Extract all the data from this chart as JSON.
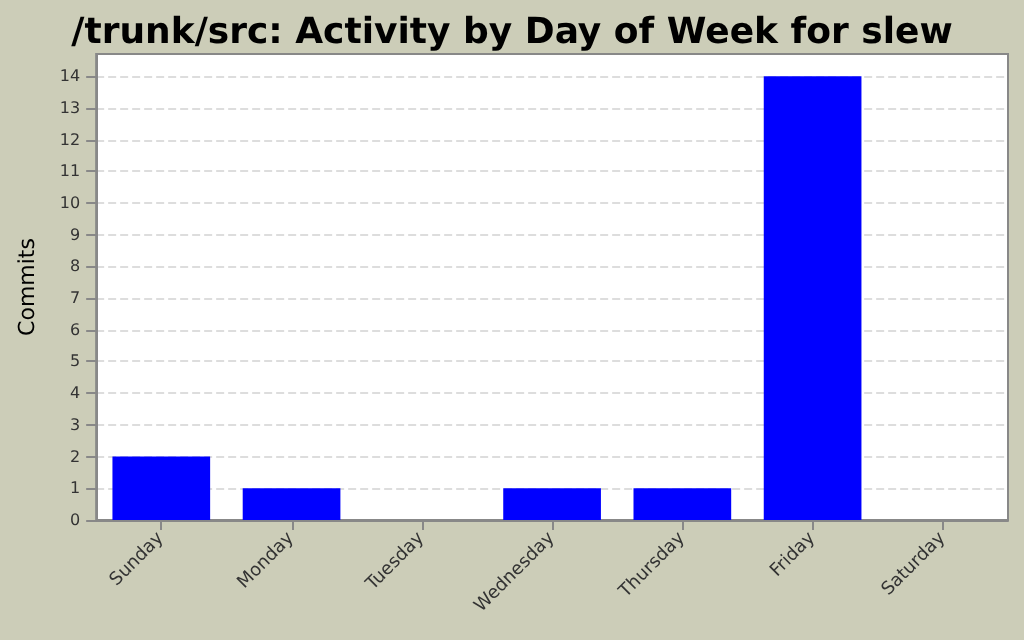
{
  "chart_data": {
    "type": "bar",
    "title": "/trunk/src: Activity by Day of Week for slew",
    "ylabel": "Commits",
    "categories": [
      "Sunday",
      "Monday",
      "Tuesday",
      "Wednesday",
      "Thursday",
      "Friday",
      "Saturday"
    ],
    "values": [
      2,
      1,
      0,
      1,
      1,
      14,
      0
    ],
    "color": "#0000ff",
    "ylim": [
      0,
      14.7
    ],
    "yticks": [
      0,
      1,
      2,
      3,
      4,
      5,
      6,
      7,
      8,
      9,
      10,
      11,
      12,
      13,
      14
    ],
    "grid": "y"
  }
}
